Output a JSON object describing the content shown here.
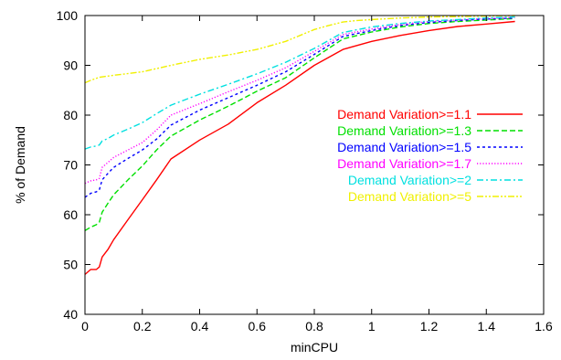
{
  "chart_data": {
    "type": "line",
    "title": "",
    "xlabel": "minCPU",
    "ylabel": "% of Demand",
    "xlim": [
      0,
      1.6
    ],
    "ylim": [
      40,
      100
    ],
    "x_ticks": [
      "0",
      "0.2",
      "0.4",
      "0.6",
      "0.8",
      "1",
      "1.2",
      "1.4",
      "1.6"
    ],
    "y_ticks": [
      "40",
      "50",
      "60",
      "70",
      "80",
      "90",
      "100"
    ],
    "grid": false,
    "legend_position": "center-right",
    "series": [
      {
        "name": "Demand Variation>=1.1",
        "color": "#ff0000",
        "dash": "solid",
        "x": [
          0,
          0.02,
          0.04,
          0.05,
          0.06,
          0.08,
          0.1,
          0.15,
          0.2,
          0.25,
          0.3,
          0.4,
          0.5,
          0.6,
          0.7,
          0.8,
          0.9,
          1.0,
          1.1,
          1.2,
          1.3,
          1.4,
          1.5
        ],
        "y": [
          48,
          49,
          49,
          49.5,
          51.5,
          53,
          55,
          59,
          63,
          67,
          71.2,
          75,
          78.2,
          82.5,
          86,
          90,
          93.2,
          94.8,
          96,
          97,
          97.8,
          98.3,
          98.8
        ]
      },
      {
        "name": "Demand Variation>=1.3",
        "color": "#00e000",
        "dash": "long-dash",
        "x": [
          0,
          0.02,
          0.04,
          0.05,
          0.06,
          0.08,
          0.1,
          0.15,
          0.2,
          0.25,
          0.3,
          0.4,
          0.5,
          0.6,
          0.7,
          0.8,
          0.9,
          1.0,
          1.1,
          1.2,
          1.3,
          1.4,
          1.5
        ],
        "y": [
          56.8,
          57.5,
          58,
          58.5,
          60.5,
          62.3,
          64,
          67,
          69.8,
          73,
          75.8,
          79,
          81.8,
          84.8,
          87.5,
          91.5,
          95.3,
          96.7,
          97.7,
          98.4,
          98.8,
          99.1,
          99.4
        ]
      },
      {
        "name": "Demand Variation>=1.5",
        "color": "#0000ff",
        "dash": "short-dash",
        "x": [
          0,
          0.02,
          0.04,
          0.05,
          0.06,
          0.08,
          0.1,
          0.15,
          0.2,
          0.25,
          0.3,
          0.4,
          0.5,
          0.6,
          0.7,
          0.8,
          0.9,
          1.0,
          1.1,
          1.2,
          1.3,
          1.4,
          1.5
        ],
        "y": [
          63.5,
          64.3,
          64.6,
          65,
          67,
          68.3,
          69.5,
          71.3,
          73,
          75.2,
          78,
          81,
          83.5,
          86,
          88.7,
          92.2,
          95.8,
          97,
          98,
          98.6,
          99,
          99.3,
          99.5
        ]
      },
      {
        "name": "Demand Variation>=1.7",
        "color": "#ff00ff",
        "dash": "dot",
        "x": [
          0,
          0.02,
          0.04,
          0.05,
          0.06,
          0.08,
          0.1,
          0.15,
          0.2,
          0.25,
          0.3,
          0.4,
          0.5,
          0.6,
          0.7,
          0.8,
          0.9,
          1.0,
          1.1,
          1.2,
          1.3,
          1.4,
          1.5
        ],
        "y": [
          66.3,
          66.8,
          67,
          67.3,
          69.5,
          70.5,
          71.5,
          73,
          74.5,
          77,
          80,
          82.3,
          84.7,
          87,
          89.5,
          92.8,
          96.2,
          97.3,
          98.2,
          98.8,
          99.1,
          99.4,
          99.6
        ]
      },
      {
        "name": "Demand Variation>=2",
        "color": "#00e0e0",
        "dash": "dash-dot",
        "x": [
          0,
          0.02,
          0.04,
          0.05,
          0.06,
          0.08,
          0.1,
          0.15,
          0.2,
          0.25,
          0.3,
          0.4,
          0.5,
          0.6,
          0.7,
          0.8,
          0.9,
          1.0,
          1.1,
          1.2,
          1.3,
          1.4,
          1.5
        ],
        "y": [
          73.2,
          73.6,
          73.8,
          74,
          74.8,
          75.3,
          76,
          77.2,
          78.5,
          80.3,
          82,
          84.2,
          86.2,
          88.3,
          90.6,
          93.4,
          96.6,
          97.7,
          98.4,
          98.9,
          99.2,
          99.5,
          99.7
        ]
      },
      {
        "name": "Demand Variation>=5",
        "color": "#f0f000",
        "dash": "dash-dot-dot",
        "x": [
          0,
          0.02,
          0.05,
          0.1,
          0.2,
          0.3,
          0.4,
          0.5,
          0.6,
          0.7,
          0.8,
          0.85,
          0.9,
          0.95,
          1.0,
          1.1,
          1.2,
          1.3,
          1.4,
          1.5
        ],
        "y": [
          86.5,
          87,
          87.6,
          88,
          88.7,
          90,
          91.2,
          92.1,
          93.2,
          94.8,
          97.2,
          98,
          98.7,
          99,
          99.2,
          99.5,
          99.7,
          99.8,
          99.9,
          100
        ]
      }
    ]
  }
}
